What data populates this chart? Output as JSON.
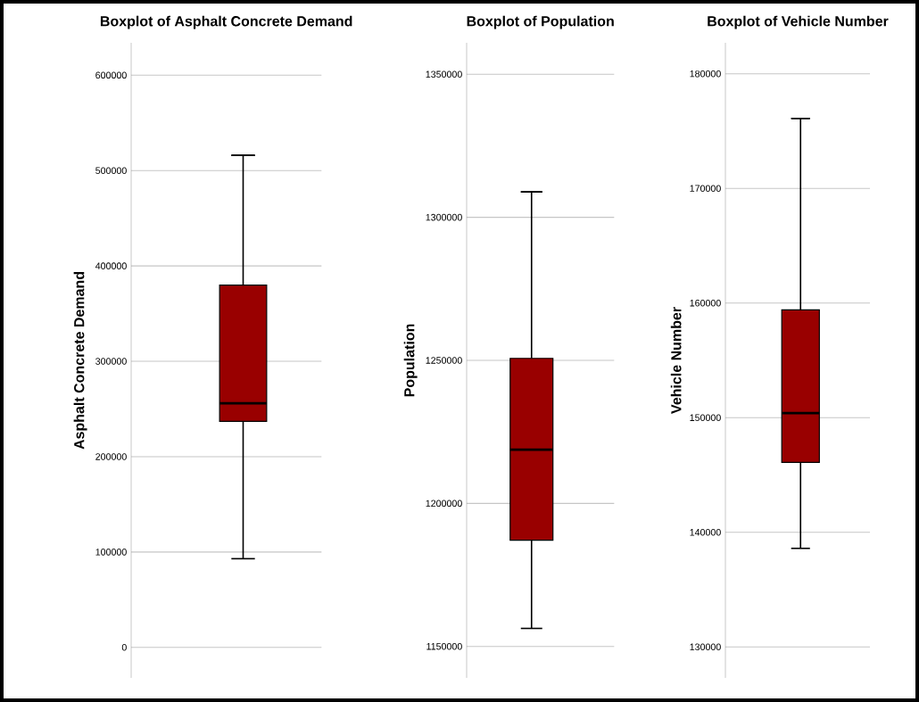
{
  "chart_data": [
    {
      "type": "box",
      "title": "Boxplot of Asphalt Concrete Demand",
      "ylabel": "Asphalt Concrete Demand",
      "categories": [
        null
      ],
      "color": "#990000",
      "grid": "y",
      "ylim": [
        -32000,
        634000
      ],
      "yticks": [
        0,
        100000,
        200000,
        300000,
        400000,
        500000,
        600000
      ],
      "boxes": [
        {
          "low": 93000,
          "q1": 237000,
          "median": 256000,
          "q3": 380000,
          "high": 516000
        }
      ]
    },
    {
      "type": "box",
      "title": "Boxplot of Population",
      "ylabel": "Population",
      "categories": [
        null
      ],
      "color": "#990000",
      "grid": "y",
      "ylim": [
        1139000,
        1361000
      ],
      "yticks": [
        1150000,
        1200000,
        1250000,
        1300000,
        1350000
      ],
      "boxes": [
        {
          "low": 1156300,
          "q1": 1187100,
          "median": 1218800,
          "q3": 1250700,
          "high": 1308900
        }
      ]
    },
    {
      "type": "box",
      "title": "Boxplot of Vehicle Number",
      "ylabel": "Vehicle Number",
      "categories": [
        null
      ],
      "color": "#990000",
      "grid": "y",
      "ylim": [
        127300,
        182700
      ],
      "yticks": [
        130000,
        140000,
        150000,
        160000,
        170000,
        180000
      ],
      "boxes": [
        {
          "low": 138600,
          "q1": 146100,
          "median": 150400,
          "q3": 159400,
          "high": 176100
        }
      ]
    }
  ]
}
